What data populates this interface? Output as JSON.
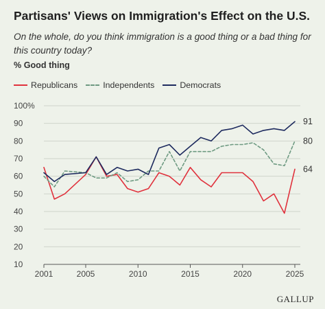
{
  "colors": {
    "background": "#eef2ea",
    "republicans": "#e0313c",
    "independents": "#6e9a82",
    "democrats": "#1d2a5e",
    "grid": "#cfd4cb"
  },
  "chart_data": {
    "type": "line",
    "title": "Partisans' Views on Immigration's Effect on the U.S.",
    "subtitle": "On the whole, do you think immigration is a good thing or a bad thing for this country today?",
    "ylabel": "% Good thing",
    "xlim": [
      2001,
      2025
    ],
    "ylim": [
      10,
      100
    ],
    "x_ticks": [
      2001,
      2005,
      2010,
      2015,
      2020,
      2025
    ],
    "x_tick_labels": [
      "2001",
      "2005",
      "2010",
      "2015",
      "2020",
      "2025"
    ],
    "y_ticks": [
      100,
      90,
      80,
      70,
      60,
      50,
      40,
      30,
      20,
      10
    ],
    "y_tick_labels": [
      "100%",
      "90",
      "80",
      "70",
      "60",
      "50",
      "40",
      "30",
      "20",
      "10"
    ],
    "grid": "horizontal",
    "legend_position": "top-left",
    "series": [
      {
        "name": "Republicans",
        "style": "solid",
        "color": "#e0313c",
        "end_label": "64",
        "x": [
          2001,
          2002,
          2003,
          2005,
          2006,
          2007,
          2008,
          2009,
          2010,
          2011,
          2012,
          2013,
          2014,
          2015,
          2016,
          2017,
          2018,
          2019,
          2020,
          2021,
          2022,
          2023,
          2024,
          2025
        ],
        "values": [
          65,
          47,
          50,
          61,
          71,
          60,
          61,
          53,
          51,
          53,
          62,
          60,
          55,
          65,
          58,
          54,
          62,
          62,
          62,
          57,
          46,
          50,
          39,
          64
        ]
      },
      {
        "name": "Independents",
        "style": "dashed",
        "color": "#6e9a82",
        "end_label": "80",
        "x": [
          2001,
          2002,
          2003,
          2005,
          2006,
          2007,
          2008,
          2009,
          2010,
          2011,
          2012,
          2013,
          2014,
          2015,
          2016,
          2017,
          2018,
          2019,
          2020,
          2021,
          2022,
          2023,
          2024,
          2025
        ],
        "values": [
          60,
          54,
          63,
          62,
          59,
          59,
          62,
          57,
          58,
          63,
          63,
          74,
          63,
          74,
          74,
          74,
          77,
          78,
          78,
          79,
          75,
          67,
          66,
          80
        ]
      },
      {
        "name": "Democrats",
        "style": "solid",
        "color": "#1d2a5e",
        "end_label": "91",
        "x": [
          2001,
          2002,
          2003,
          2005,
          2006,
          2007,
          2008,
          2009,
          2010,
          2011,
          2012,
          2013,
          2014,
          2015,
          2016,
          2017,
          2018,
          2019,
          2020,
          2021,
          2022,
          2023,
          2024,
          2025
        ],
        "values": [
          62,
          57,
          61,
          62,
          71,
          61,
          65,
          63,
          64,
          61,
          76,
          78,
          72,
          77,
          82,
          80,
          86,
          87,
          89,
          84,
          86,
          87,
          86,
          91
        ]
      }
    ]
  },
  "brand": "GALLUP"
}
